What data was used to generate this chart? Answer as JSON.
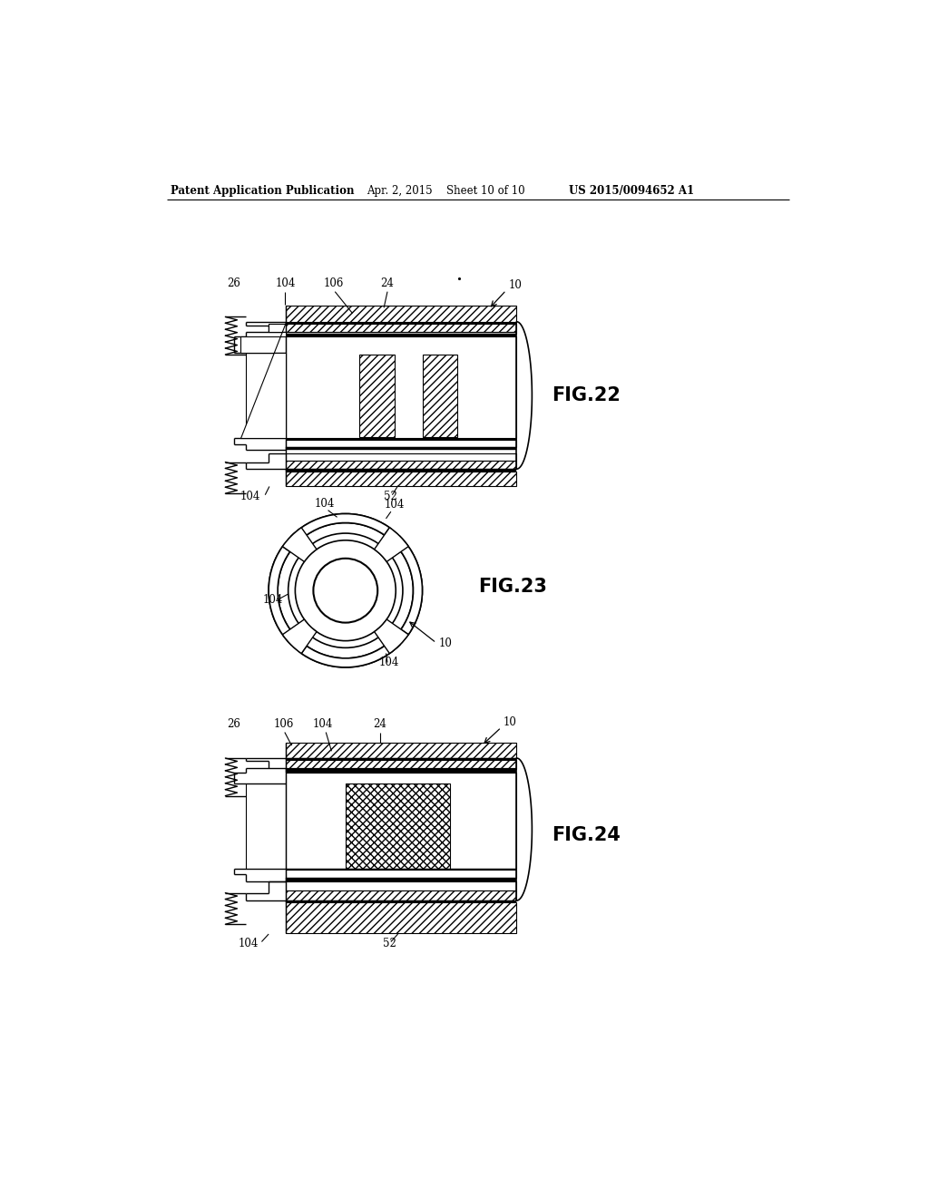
{
  "background_color": "#ffffff",
  "header_text": "Patent Application Publication",
  "header_date": "Apr. 2, 2015",
  "header_sheet": "Sheet 10 of 10",
  "header_patent": "US 2015/0094652 A1",
  "fig22_label": "FIG.22",
  "fig23_label": "FIG.23",
  "fig24_label": "FIG.24",
  "text_color": "#000000",
  "line_color": "#000000"
}
